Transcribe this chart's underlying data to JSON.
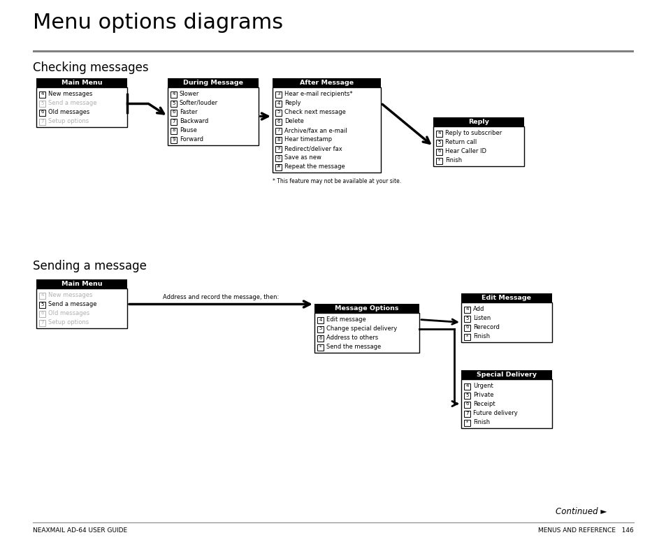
{
  "title": "Menu options diagrams",
  "subtitle_check": "Checking messages",
  "subtitle_send": "Sending a message",
  "footer_left": "NEAXMAIL AD-64 USER GUIDE",
  "footer_right": "MENUS AND REFERENCE   146",
  "continued": "Continued ►",
  "bg_color": "#ffffff",
  "check_main_menu": {
    "title": "Main Menu",
    "items": [
      {
        "key": "4",
        "text": "New messages",
        "active": true
      },
      {
        "key": "5",
        "text": "Send a message",
        "active": false
      },
      {
        "key": "6",
        "text": "Old messages",
        "active": true
      },
      {
        "key": "7",
        "text": "Setup options",
        "active": false
      }
    ]
  },
  "check_during": {
    "title": "During Message",
    "items": [
      {
        "key": "4",
        "text": "Slower"
      },
      {
        "key": "5",
        "text": "Softer/louder"
      },
      {
        "key": "6",
        "text": "Faster"
      },
      {
        "key": "7",
        "text": "Backward"
      },
      {
        "key": "8",
        "text": "Pause"
      },
      {
        "key": "9",
        "text": "Forward"
      }
    ]
  },
  "check_after": {
    "title": "After Message",
    "items": [
      {
        "key": "3",
        "text": "Hear e-mail recipients*"
      },
      {
        "key": "4",
        "text": "Reply"
      },
      {
        "key": "5",
        "text": "Check next message"
      },
      {
        "key": "6",
        "text": "Delete"
      },
      {
        "key": "7",
        "text": "Archive/fax an e-mail"
      },
      {
        "key": "8",
        "text": "Hear timestamp"
      },
      {
        "key": "9",
        "text": "Redirect/deliver fax"
      },
      {
        "key": "0",
        "text": "Save as new"
      },
      {
        "key": "#",
        "text": "Repeat the message"
      }
    ],
    "footnote": "* This feature may not be available at your site."
  },
  "check_reply": {
    "title": "Reply",
    "items": [
      {
        "key": "4",
        "text": "Reply to subscriber"
      },
      {
        "key": "5",
        "text": "Return call"
      },
      {
        "key": "6",
        "text": "Hear Caller ID"
      },
      {
        "key": "*",
        "text": "Finish"
      }
    ]
  },
  "send_main_menu": {
    "title": "Main Menu",
    "items": [
      {
        "key": "4",
        "text": "New messages",
        "active": false
      },
      {
        "key": "5",
        "text": "Send a message",
        "active": true
      },
      {
        "key": "6",
        "text": "Old messages",
        "active": false
      },
      {
        "key": "7",
        "text": "Setup options",
        "active": false
      }
    ]
  },
  "send_middle_label": "Address and record the message, then:",
  "send_msg_options": {
    "title": "Message Options",
    "items": [
      {
        "key": "4",
        "text": "Edit message"
      },
      {
        "key": "5",
        "text": "Change special delivery"
      },
      {
        "key": "6",
        "text": "Address to others"
      },
      {
        "key": "*",
        "text": "Send the message"
      }
    ]
  },
  "send_edit": {
    "title": "Edit Message",
    "items": [
      {
        "key": "4",
        "text": "Add"
      },
      {
        "key": "5",
        "text": "Listen"
      },
      {
        "key": "6",
        "text": "Rerecord"
      },
      {
        "key": "*",
        "text": "Finish"
      }
    ]
  },
  "send_special": {
    "title": "Special Delivery",
    "items": [
      {
        "key": "4",
        "text": "Urgent"
      },
      {
        "key": "5",
        "text": "Private"
      },
      {
        "key": "6",
        "text": "Receipt"
      },
      {
        "key": "7",
        "text": "Future delivery"
      },
      {
        "key": "*",
        "text": "Finish"
      }
    ]
  }
}
